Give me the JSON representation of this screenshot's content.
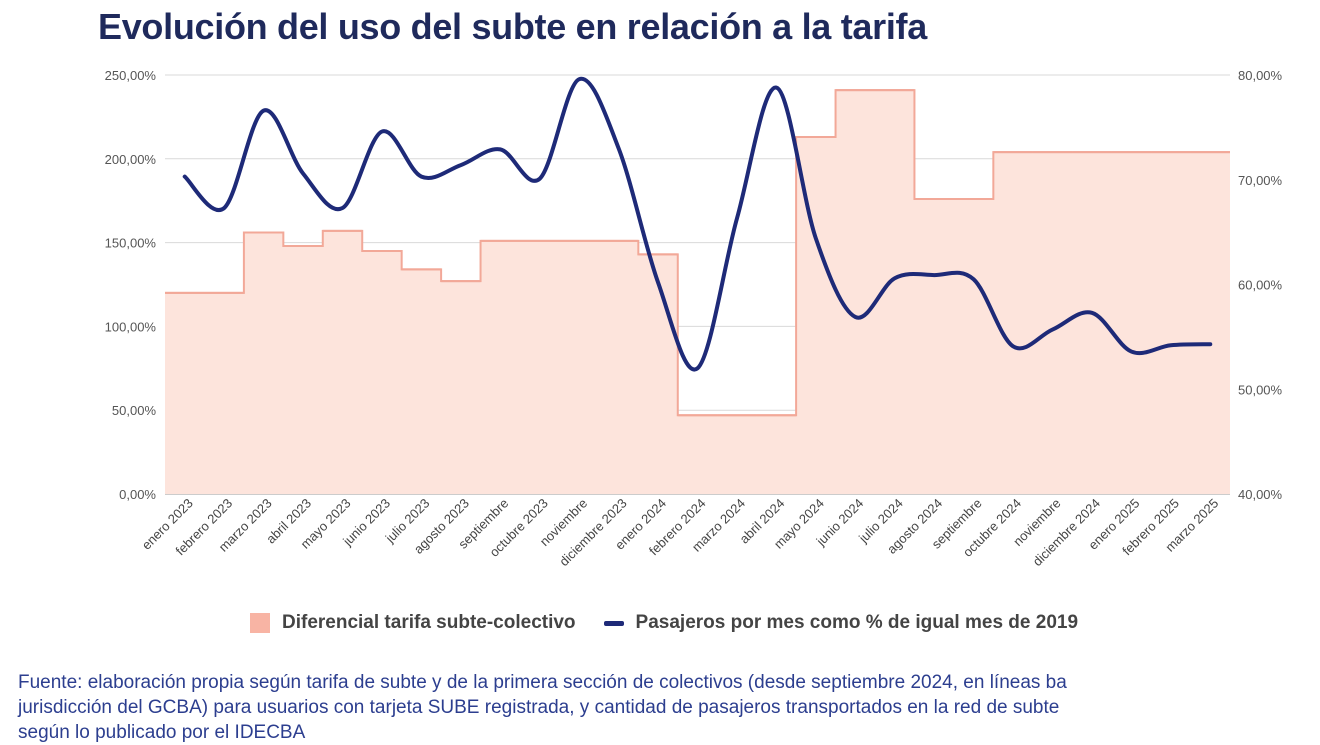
{
  "title": "Evolución del uso del subte en relación a la tarifa",
  "legend": {
    "bars": "Diferencial tarifa subte-colectivo",
    "line": "Pasajeros por mes como % de igual mes de 2019"
  },
  "source_lines": [
    "Fuente: elaboración propia según tarifa de subte y de la primera sección de colectivos (desde septiembre 2024, en líneas ba",
    "jurisdicción del GCBA) para usuarios con tarjeta SUBE registrada, y cantidad de pasajeros transportados en la red de subte",
    "según lo publicado por el IDECBA"
  ],
  "colors": {
    "title": "#1f2a5c",
    "area_fill": "#fde4dc",
    "area_stroke": "#f2a898",
    "line": "#1e2a78",
    "grid": "#d9d9d9",
    "source": "#2c3e8f"
  },
  "chart_data": {
    "type": "line",
    "categories": [
      "enero 2023",
      "febrero 2023",
      "marzo 2023",
      "abril 2023",
      "mayo 2023",
      "junio 2023",
      "julio 2023",
      "agosto 2023",
      "septiembre",
      "octubre 2023",
      "noviembre",
      "diciembre 2023",
      "enero 2024",
      "febrero 2024",
      "marzo 2024",
      "abril 2024",
      "mayo 2024",
      "junio 2024",
      "julio 2024",
      "agosto 2024",
      "septiembre",
      "octubre 2024",
      "noviembre",
      "diciembre 2024",
      "enero 2025",
      "febrero 2025",
      "marzo 2025"
    ],
    "series": [
      {
        "name": "Diferencial tarifa subte-colectivo",
        "axis": "left",
        "render": "step-area",
        "values": [
          120,
          120,
          156,
          148,
          157,
          145,
          134,
          127,
          151,
          151,
          151,
          151,
          143,
          47,
          47,
          47,
          213,
          241,
          241,
          176,
          176,
          204,
          204,
          204,
          204,
          204,
          204
        ]
      },
      {
        "name": "Pasajeros por mes como % de igual mes de 2019",
        "axis": "right",
        "render": "smooth-line",
        "values": [
          70.3,
          67.3,
          76.6,
          70.6,
          67.3,
          74.6,
          70.3,
          71.4,
          72.9,
          70.1,
          79.6,
          73.0,
          60.2,
          52.0,
          66.3,
          78.8,
          64.4,
          56.9,
          60.6,
          60.9,
          60.5,
          54.1,
          55.7,
          57.3,
          53.6,
          54.2,
          54.3
        ]
      }
    ],
    "y_left": {
      "min": 0,
      "max": 250,
      "ticks": [
        "0,00%",
        "50,00%",
        "100,00%",
        "150,00%",
        "200,00%",
        "250,00%"
      ]
    },
    "y_right": {
      "min": 40,
      "max": 80,
      "ticks": [
        "40,00%",
        "50,00%",
        "60,00%",
        "70,00%",
        "80,00%"
      ]
    },
    "grid": true,
    "legend_position": "bottom"
  }
}
